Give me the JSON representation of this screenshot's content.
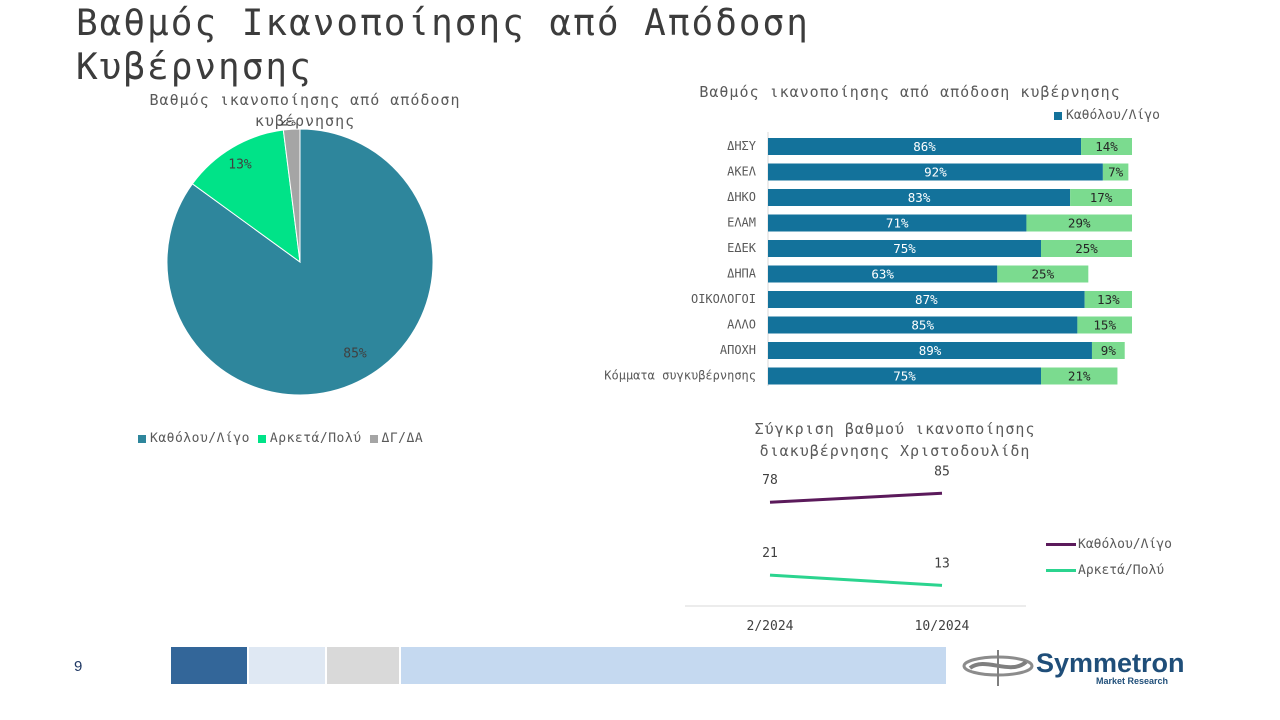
{
  "page_title": "Βαθμός Ικανοποίησης από Απόδοση Κυβέρνησης",
  "slide_number": "9",
  "colors": {
    "dark_teal": "#2e869c",
    "green": "#00e388",
    "gray": "#a5a5a5",
    "bar_blue": "#13729b",
    "bar_green": "#7bdb8f",
    "line_purple": "#5b1a5b",
    "line_green": "#2bd48f"
  },
  "logo": {
    "name": "Symmetron",
    "sub": "Market Research"
  },
  "chart_data": [
    {
      "type": "pie",
      "title": "Βαθμός ικανοποίησης από απόδοση κυβέρνησης",
      "categories": [
        "Καθόλου/Λίγο",
        "Αρκετά/Πολύ",
        "ΔΓ/ΔΑ"
      ],
      "values": [
        85,
        13,
        2
      ],
      "labels": [
        "85%",
        "13%",
        "2%"
      ],
      "legend_position": "bottom"
    },
    {
      "type": "bar",
      "orientation": "horizontal",
      "stacked": true,
      "title": "Βαθμός ικανοποίησης από απόδοση κυβέρνησης",
      "categories": [
        "ΔΗΣΥ",
        "ΑΚΕΛ",
        "ΔΗΚΟ",
        "ΕΛΑΜ",
        "ΕΔΕΚ",
        "ΔΗΠΑ",
        "ΟΙΚΟΛΟΓΟΙ",
        "ΑΛΛΟ",
        "ΑΠΟΧΗ",
        "Κόμματα συγκυβέρνησης"
      ],
      "series": [
        {
          "name": "Καθόλου/Λίγο",
          "values": [
            86,
            92,
            83,
            71,
            75,
            63,
            87,
            85,
            89,
            75
          ]
        },
        {
          "values": [
            14,
            7,
            17,
            29,
            25,
            25,
            13,
            15,
            9,
            21
          ]
        }
      ],
      "legend_position": "top-right"
    },
    {
      "type": "line",
      "title": "Σύγκριση βαθμού ικανοποίησης διακυβέρνησης Χριστοδουλίδη",
      "x": [
        "2/2024",
        "10/2024"
      ],
      "series": [
        {
          "name": "Καθόλου/Λίγο",
          "values": [
            78,
            85
          ]
        },
        {
          "name": "Αρκετά/Πολύ",
          "values": [
            21,
            13
          ]
        }
      ],
      "legend_position": "right"
    }
  ]
}
